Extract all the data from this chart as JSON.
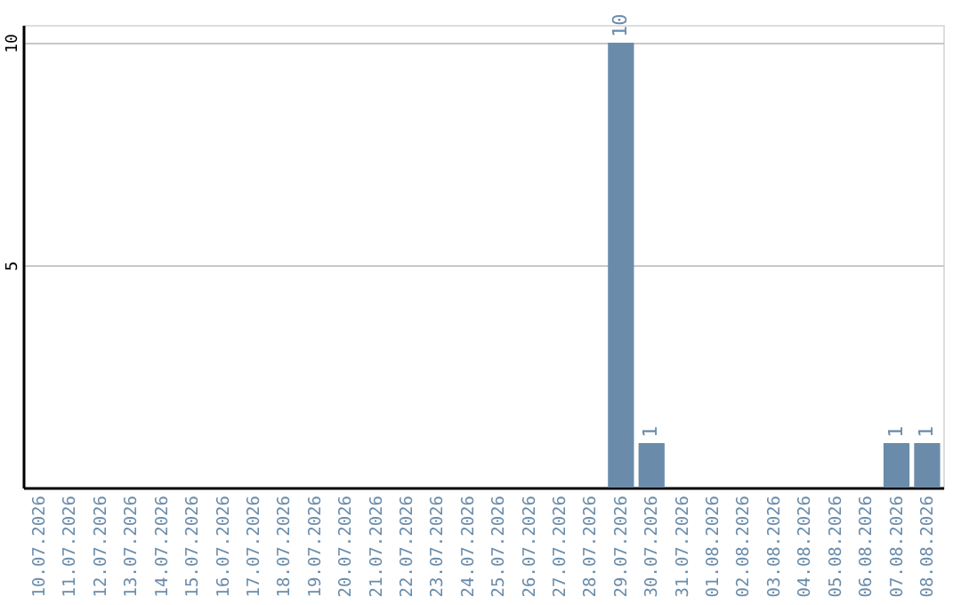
{
  "chart_data": {
    "type": "bar",
    "categories": [
      "10.07.2026",
      "11.07.2026",
      "12.07.2026",
      "13.07.2026",
      "14.07.2026",
      "15.07.2026",
      "16.07.2026",
      "17.07.2026",
      "18.07.2026",
      "19.07.2026",
      "20.07.2026",
      "21.07.2026",
      "22.07.2026",
      "23.07.2026",
      "24.07.2026",
      "25.07.2026",
      "26.07.2026",
      "27.07.2026",
      "28.07.2026",
      "29.07.2026",
      "30.07.2026",
      "31.07.2026",
      "01.08.2026",
      "02.08.2026",
      "03.08.2026",
      "04.08.2026",
      "05.08.2026",
      "06.08.2026",
      "07.08.2026",
      "08.08.2026"
    ],
    "values": [
      0,
      0,
      0,
      0,
      0,
      0,
      0,
      0,
      0,
      0,
      0,
      0,
      0,
      0,
      0,
      0,
      0,
      0,
      0,
      10,
      1,
      0,
      0,
      0,
      0,
      0,
      0,
      0,
      1,
      1
    ],
    "value_labels": [
      null,
      null,
      null,
      null,
      null,
      null,
      null,
      null,
      null,
      null,
      null,
      null,
      null,
      null,
      null,
      null,
      null,
      null,
      null,
      "10",
      "1",
      null,
      null,
      null,
      null,
      null,
      null,
      null,
      "1",
      "1"
    ],
    "color": "#6a8caa",
    "ylim": [
      0,
      10.4
    ],
    "yticks": [
      5,
      10
    ],
    "grid": "y"
  }
}
